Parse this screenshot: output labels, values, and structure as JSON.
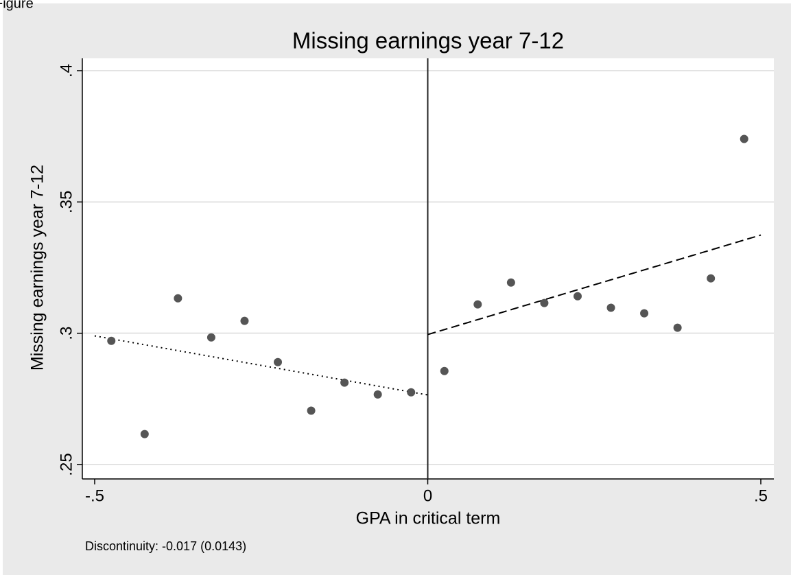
{
  "page_label": "Figure",
  "chart_data": {
    "type": "scatter",
    "title": "Missing earnings year 7-12",
    "x_label": "GPA in critical term",
    "y_label": "Missing earnings year 7-12",
    "note": "Discontinuity: -0.017 (0.0143)",
    "xlim": [
      -0.5,
      0.5
    ],
    "ylim": [
      0.25,
      0.4
    ],
    "xticks": [
      {
        "value": -0.5,
        "label": "-.5"
      },
      0,
      {
        "value": 0.5,
        "label": ".5"
      }
    ],
    "yticks": [
      {
        "value": 0.25,
        "label": ".25"
      },
      {
        "value": 0.3,
        "label": ".3"
      },
      {
        "value": 0.35,
        "label": ".35"
      },
      {
        "value": 0.4,
        "label": ".4"
      }
    ],
    "grid": true,
    "xline": 0,
    "points": {
      "color": "#555555",
      "x": [
        -0.475,
        -0.425,
        -0.375,
        -0.325,
        -0.275,
        -0.225,
        -0.175,
        -0.125,
        -0.075,
        -0.025,
        0.025,
        0.075,
        0.125,
        0.175,
        0.225,
        0.275,
        0.325,
        0.375,
        0.425,
        0.475
      ],
      "values": [
        0.2971,
        0.2616,
        0.3133,
        0.2984,
        0.3047,
        0.289,
        0.2705,
        0.2812,
        0.2767,
        0.2775,
        0.2856,
        0.311,
        0.3193,
        0.3115,
        0.3141,
        0.3097,
        0.3076,
        0.3021,
        0.3209,
        0.374
      ]
    },
    "fit_lines": [
      {
        "color": "#000000",
        "style": "dotted",
        "x": [
          -0.5,
          0
        ],
        "values": [
          0.299,
          0.2765
        ]
      },
      {
        "color": "#000000",
        "style": "dashed",
        "x": [
          0,
          0.5
        ],
        "values": [
          0.2995,
          0.3374
        ]
      }
    ]
  }
}
